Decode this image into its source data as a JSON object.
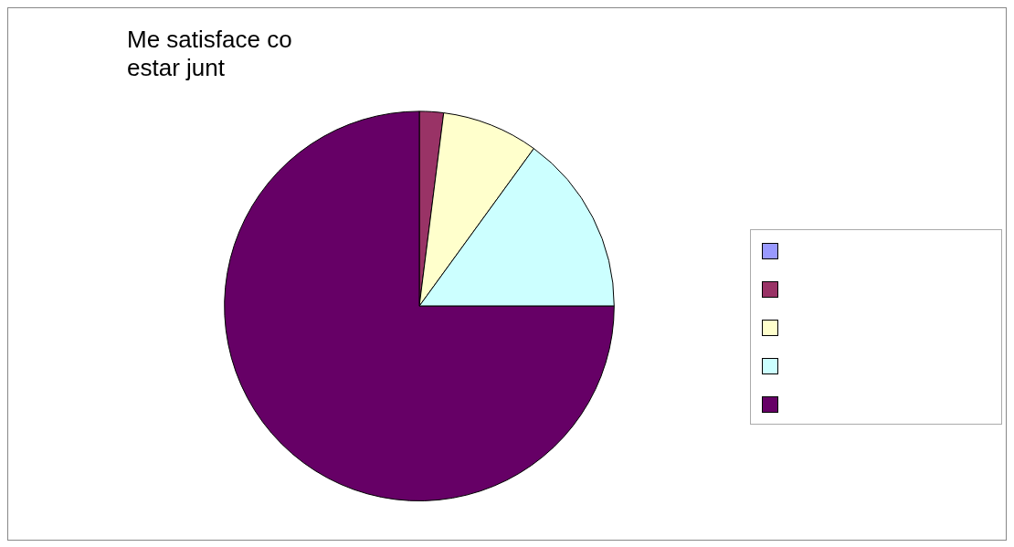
{
  "chart_data": {
    "type": "pie",
    "title": "Me satisface co\nestar junt",
    "categories": [
      null,
      null,
      null,
      null,
      null
    ],
    "values": [
      null,
      2,
      8,
      15,
      75
    ],
    "colors": [
      "#9999ff",
      "#993366",
      "#ffffcc",
      "#ccffff",
      "#660066"
    ]
  }
}
